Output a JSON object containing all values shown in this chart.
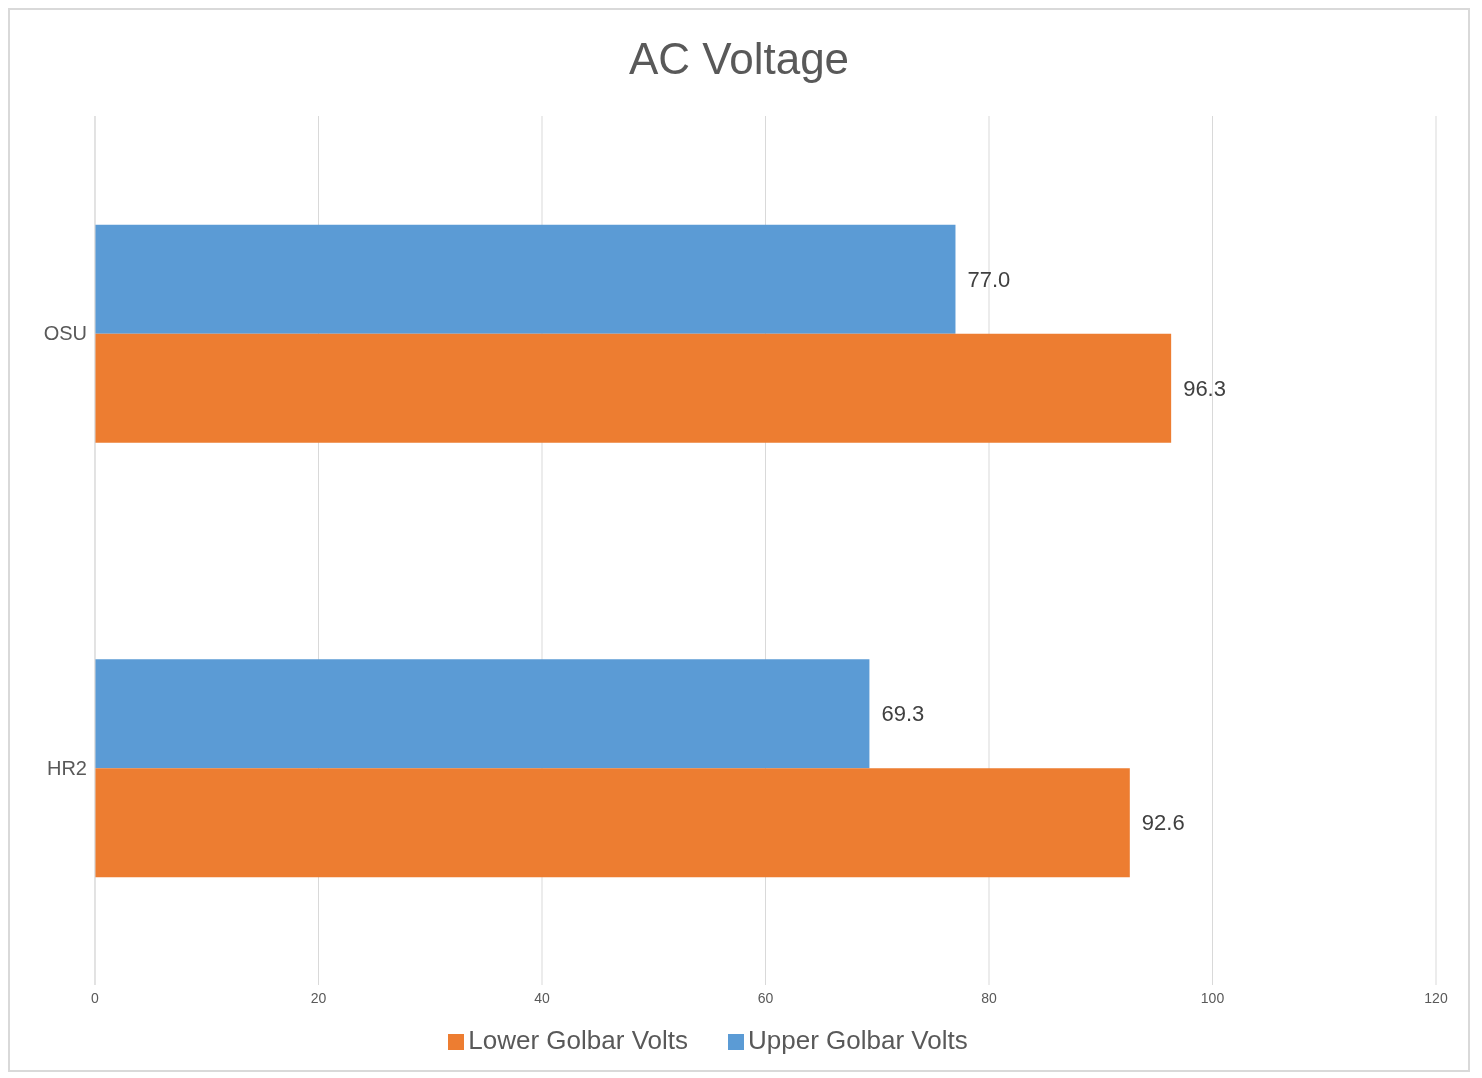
{
  "chart_data": {
    "type": "bar",
    "orientation": "horizontal",
    "title": "AC Voltage",
    "categories": [
      "OSU",
      "HR2"
    ],
    "series": [
      {
        "name": "Upper Golbar Volts",
        "color": "#5b9bd5",
        "values": [
          77.0,
          69.3
        ],
        "value_labels": [
          "77.0",
          "69.3"
        ]
      },
      {
        "name": "Lower Golbar Volts",
        "color": "#ed7d31",
        "values": [
          96.3,
          92.6
        ],
        "value_labels": [
          "96.3",
          "92.6"
        ]
      }
    ],
    "xlim": [
      0,
      120
    ],
    "xticks": [
      0,
      20,
      40,
      60,
      80,
      100,
      120
    ],
    "grid": "x",
    "legend": "bottom"
  }
}
